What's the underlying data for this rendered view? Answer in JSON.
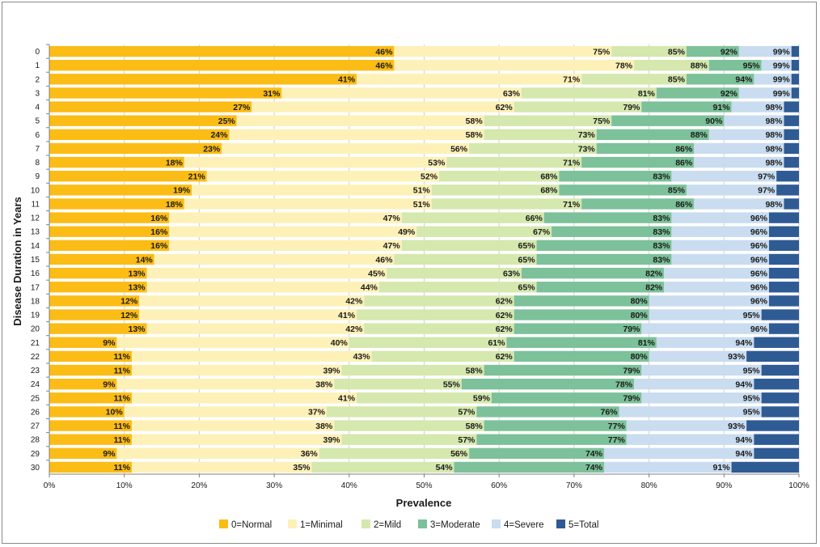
{
  "chart_data": {
    "type": "bar",
    "orientation": "horizontal",
    "stacked": true,
    "value_format": "cumulative_percent",
    "title": "",
    "xlabel": "Prevalence",
    "ylabel": "Disease Duration in Years",
    "xlim": [
      0,
      100
    ],
    "x_ticks": [
      "0%",
      "10%",
      "20%",
      "30%",
      "40%",
      "50%",
      "60%",
      "70%",
      "80%",
      "90%",
      "100%"
    ],
    "legend_position": "bottom",
    "categories": [
      "0",
      "1",
      "2",
      "3",
      "4",
      "5",
      "6",
      "7",
      "8",
      "9",
      "10",
      "11",
      "12",
      "13",
      "14",
      "15",
      "16",
      "17",
      "18",
      "19",
      "20",
      "21",
      "22",
      "23",
      "24",
      "25",
      "26",
      "27",
      "28",
      "29",
      "30"
    ],
    "series": [
      {
        "name": "0=Normal",
        "color": "#FBBC15",
        "cumulative": [
          46,
          46,
          41,
          31,
          27,
          25,
          24,
          23,
          18,
          21,
          19,
          18,
          16,
          16,
          16,
          14,
          13,
          13,
          12,
          12,
          13,
          9,
          11,
          11,
          9,
          11,
          10,
          11,
          11,
          9,
          11
        ]
      },
      {
        "name": "1=Minimal",
        "color": "#FDF1B8",
        "cumulative": [
          75,
          78,
          71,
          63,
          62,
          58,
          58,
          56,
          53,
          52,
          51,
          51,
          47,
          49,
          47,
          46,
          45,
          44,
          42,
          41,
          42,
          40,
          43,
          39,
          38,
          41,
          37,
          38,
          39,
          36,
          35
        ]
      },
      {
        "name": "2=Mild",
        "color": "#D5E8AE",
        "cumulative": [
          85,
          88,
          85,
          81,
          79,
          75,
          73,
          73,
          71,
          68,
          68,
          71,
          66,
          67,
          65,
          65,
          63,
          65,
          62,
          62,
          62,
          61,
          62,
          58,
          55,
          59,
          57,
          58,
          57,
          56,
          54
        ]
      },
      {
        "name": "3=Moderate",
        "color": "#7CC199",
        "cumulative": [
          92,
          95,
          94,
          92,
          91,
          90,
          88,
          86,
          86,
          83,
          85,
          86,
          83,
          83,
          83,
          83,
          82,
          82,
          80,
          80,
          79,
          81,
          80,
          79,
          78,
          79,
          76,
          77,
          77,
          74,
          74
        ]
      },
      {
        "name": "4=Severe",
        "color": "#C9DCF0",
        "cumulative": [
          99,
          99,
          99,
          99,
          98,
          98,
          98,
          98,
          98,
          97,
          97,
          98,
          96,
          96,
          96,
          96,
          96,
          96,
          96,
          95,
          96,
          94,
          93,
          95,
          94,
          95,
          95,
          93,
          94,
          94,
          91
        ]
      },
      {
        "name": "5=Total",
        "color": "#2F5B95",
        "cumulative": [
          100,
          100,
          100,
          100,
          100,
          100,
          100,
          100,
          100,
          100,
          100,
          100,
          100,
          100,
          100,
          100,
          100,
          100,
          100,
          100,
          100,
          100,
          100,
          100,
          100,
          100,
          100,
          100,
          100,
          100,
          100
        ]
      }
    ]
  }
}
